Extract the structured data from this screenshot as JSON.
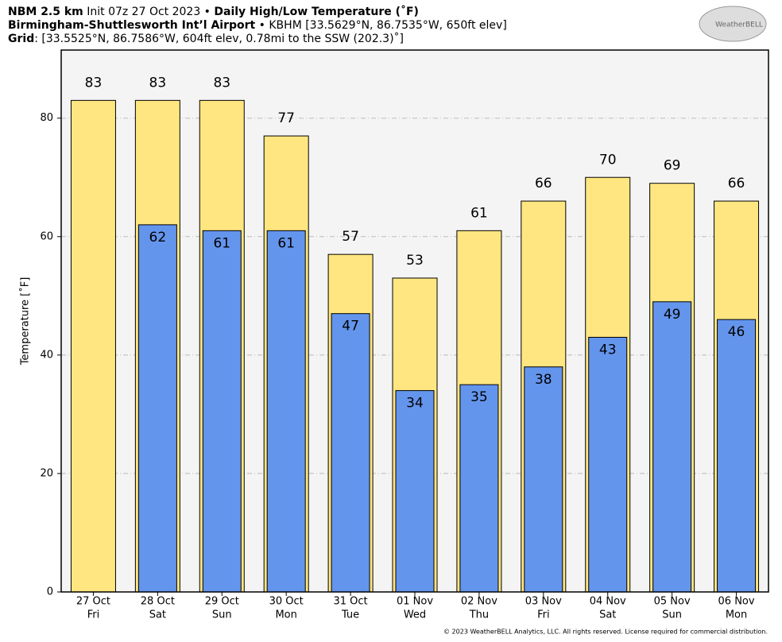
{
  "header": {
    "line1": [
      "NBM 2.5 km",
      "Init 07z 27 Oct 2023 •",
      "Daily High/Low Temperature (˚F)"
    ],
    "line2": [
      "Birmingham-Shuttlesworth Int’l Airport",
      "• KBHM [33.5629°N, 86.7535°W, 650ft elev]"
    ],
    "line3": [
      "Grid",
      ": [33.5525°N, 86.7586°W, 604ft elev, 0.78mi to the SSW (202.3)˚]"
    ],
    "logo": "WeatherBELL"
  },
  "footer": "© 2023 WeatherBELL Analytics, LLC. All rights reserved. License required for commercial distribution.",
  "chart_data": {
    "type": "bar",
    "ylabel": "Temperature [˚F]",
    "categories": [
      "27 Oct",
      "28 Oct",
      "29 Oct",
      "30 Oct",
      "31 Oct",
      "01 Nov",
      "02 Nov",
      "03 Nov",
      "04 Nov",
      "05 Nov",
      "06 Nov"
    ],
    "category_days": [
      "Fri",
      "Sat",
      "Sun",
      "Mon",
      "Tue",
      "Wed",
      "Thu",
      "Fri",
      "Sat",
      "Sun",
      "Mon"
    ],
    "series": [
      {
        "color": "#ffe680",
        "values": [
          83,
          83,
          83,
          77,
          57,
          53,
          61,
          66,
          70,
          69,
          66
        ]
      },
      {
        "color": "#6495ed",
        "values": [
          null,
          62,
          61,
          61,
          47,
          34,
          35,
          38,
          43,
          49,
          46
        ]
      }
    ],
    "ylim": [
      0,
      91.5
    ],
    "yticks": [
      0,
      20,
      40,
      60,
      80
    ],
    "grid": true
  }
}
